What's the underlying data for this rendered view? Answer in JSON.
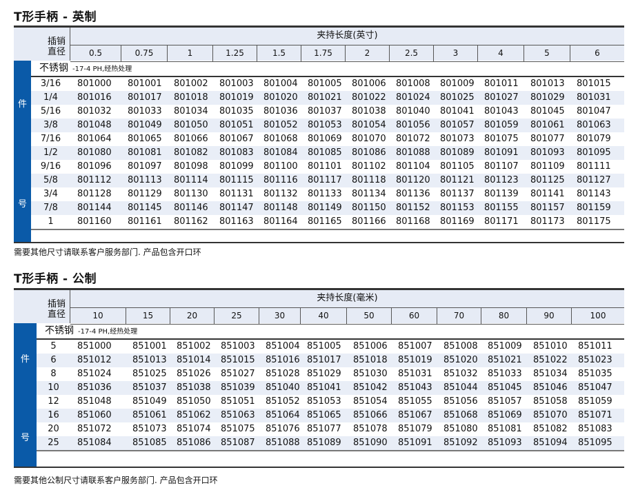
{
  "imperial": {
    "title": "T形手柄 - 英制",
    "pin_label_1": "插销",
    "pin_label_2": "直径",
    "group_header": "夹持长度(英寸)",
    "columns": [
      "0.5",
      "0.75",
      "1",
      "1.25",
      "1.5",
      "1.75",
      "2",
      "2.5",
      "3",
      "4",
      "5",
      "6"
    ],
    "side_label_top": "件",
    "side_label_bottom": "号",
    "material": "不锈钢",
    "material_note": "-17-4 PH,经热处理",
    "rows": [
      {
        "pin": "3/16",
        "values": [
          "801000",
          "801001",
          "801002",
          "801003",
          "801004",
          "801005",
          "801006",
          "801008",
          "801009",
          "801011",
          "801013",
          "801015"
        ]
      },
      {
        "pin": "1/4",
        "values": [
          "801016",
          "801017",
          "801018",
          "801019",
          "801020",
          "801021",
          "801022",
          "801024",
          "801025",
          "801027",
          "801029",
          "801031"
        ]
      },
      {
        "pin": "5/16",
        "values": [
          "801032",
          "801033",
          "801034",
          "801035",
          "801036",
          "801037",
          "801038",
          "801040",
          "801041",
          "801043",
          "801045",
          "801047"
        ]
      },
      {
        "pin": "3/8",
        "values": [
          "801048",
          "801049",
          "801050",
          "801051",
          "801052",
          "801053",
          "801054",
          "801056",
          "801057",
          "801059",
          "801061",
          "801063"
        ]
      },
      {
        "pin": "7/16",
        "values": [
          "801064",
          "801065",
          "801066",
          "801067",
          "801068",
          "801069",
          "801070",
          "801072",
          "801073",
          "801075",
          "801077",
          "801079"
        ]
      },
      {
        "pin": "1/2",
        "values": [
          "801080",
          "801081",
          "801082",
          "801083",
          "801084",
          "801085",
          "801086",
          "801088",
          "801089",
          "801091",
          "801093",
          "801095"
        ]
      },
      {
        "pin": "9/16",
        "values": [
          "801096",
          "801097",
          "801098",
          "801099",
          "801100",
          "801101",
          "801102",
          "801104",
          "801105",
          "801107",
          "801109",
          "801111"
        ]
      },
      {
        "pin": "5/8",
        "values": [
          "801112",
          "801113",
          "801114",
          "801115",
          "801116",
          "801117",
          "801118",
          "801120",
          "801121",
          "801123",
          "801125",
          "801127"
        ]
      },
      {
        "pin": "3/4",
        "values": [
          "801128",
          "801129",
          "801130",
          "801131",
          "801132",
          "801133",
          "801134",
          "801136",
          "801137",
          "801139",
          "801141",
          "801143"
        ]
      },
      {
        "pin": "7/8",
        "values": [
          "801144",
          "801145",
          "801146",
          "801147",
          "801148",
          "801149",
          "801150",
          "801152",
          "801153",
          "801155",
          "801157",
          "801159"
        ]
      },
      {
        "pin": "1",
        "values": [
          "801160",
          "801161",
          "801162",
          "801163",
          "801164",
          "801165",
          "801166",
          "801168",
          "801169",
          "801171",
          "801173",
          "801175"
        ]
      }
    ],
    "note": "需要其他尺寸请联系客户服务部门. 产品包含开口环"
  },
  "metric": {
    "title": "T形手柄 - 公制",
    "pin_label_1": "插销",
    "pin_label_2": "直径",
    "group_header": "夹持长度(毫米)",
    "columns": [
      "10",
      "15",
      "20",
      "25",
      "30",
      "40",
      "50",
      "60",
      "70",
      "80",
      "90",
      "100"
    ],
    "side_label_top": "件",
    "side_label_bottom": "号",
    "material": "不锈钢",
    "material_note": "-17-4 PH,经热处理",
    "rows": [
      {
        "pin": "5",
        "values": [
          "851000",
          "851001",
          "851002",
          "851003",
          "851004",
          "851005",
          "851006",
          "851007",
          "851008",
          "851009",
          "851010",
          "851011"
        ]
      },
      {
        "pin": "6",
        "values": [
          "851012",
          "851013",
          "851014",
          "851015",
          "851016",
          "851017",
          "851018",
          "851019",
          "851020",
          "851021",
          "851022",
          "851023"
        ]
      },
      {
        "pin": "8",
        "values": [
          "851024",
          "851025",
          "851026",
          "851027",
          "851028",
          "851029",
          "851030",
          "851031",
          "851032",
          "851033",
          "851034",
          "851035"
        ]
      },
      {
        "pin": "10",
        "values": [
          "851036",
          "851037",
          "851038",
          "851039",
          "851040",
          "851041",
          "851042",
          "851043",
          "851044",
          "851045",
          "851046",
          "851047"
        ]
      },
      {
        "pin": "12",
        "values": [
          "851048",
          "851049",
          "851050",
          "851051",
          "851052",
          "851053",
          "851054",
          "851055",
          "851056",
          "851057",
          "851058",
          "851059"
        ]
      },
      {
        "pin": "16",
        "values": [
          "851060",
          "851061",
          "851062",
          "851063",
          "851064",
          "851065",
          "851066",
          "851067",
          "851068",
          "851069",
          "851070",
          "851071"
        ]
      },
      {
        "pin": "20",
        "values": [
          "851072",
          "851073",
          "851074",
          "851075",
          "851076",
          "851077",
          "851078",
          "851079",
          "851080",
          "851081",
          "851082",
          "851083"
        ]
      },
      {
        "pin": "25",
        "values": [
          "851084",
          "851085",
          "851086",
          "851087",
          "851088",
          "851089",
          "851090",
          "851091",
          "851092",
          "851093",
          "851094",
          "851095"
        ]
      }
    ],
    "note": "需要其他公制尺寸请联系客户服务部门. 产品包含开口环"
  },
  "colors": {
    "side_bar": "#0a5aa8",
    "header_bg": "#e6ebf5",
    "stripe": "#e9eef7"
  }
}
